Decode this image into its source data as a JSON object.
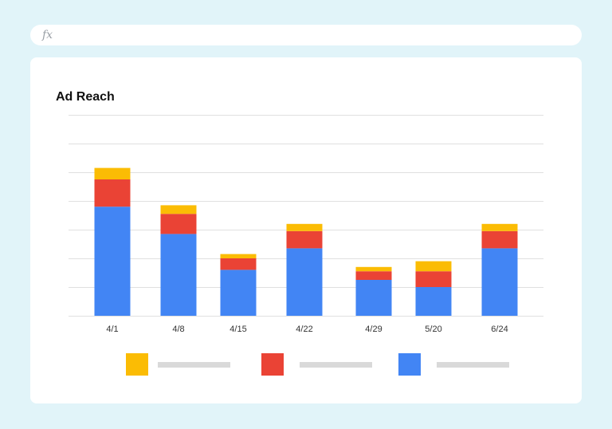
{
  "formula_bar": {
    "icon": "fx-icon",
    "text": "fx"
  },
  "colors": {
    "series_top": "#fbbc04",
    "series_middle": "#ea4335",
    "series_bottom": "#4285f4",
    "grid": "#e0e0e0",
    "legend_placeholder": "#d9d9d9"
  },
  "chart_data": {
    "type": "bar",
    "stacked": true,
    "title": "Ad Reach",
    "xlabel": "",
    "ylabel": "",
    "ylim": [
      0,
      7
    ],
    "grid": true,
    "y_tick_labels_visible": false,
    "legend_placement": "bottom",
    "legend_labels_visible": false,
    "categories": [
      "4/1",
      "4/8",
      "4/15",
      "4/22",
      "4/29",
      "5/20",
      "6/24"
    ],
    "series": [
      {
        "values": [
          3.8,
          2.85,
          1.6,
          2.35,
          1.25,
          1.0,
          2.35
        ],
        "color": "#4285f4"
      },
      {
        "values": [
          0.95,
          0.7,
          0.4,
          0.6,
          0.3,
          0.55,
          0.6
        ],
        "color": "#ea4335"
      },
      {
        "values": [
          0.4,
          0.3,
          0.15,
          0.25,
          0.15,
          0.35,
          0.25
        ],
        "color": "#fbbc04"
      }
    ],
    "legend_order": [
      2,
      1,
      0
    ]
  }
}
